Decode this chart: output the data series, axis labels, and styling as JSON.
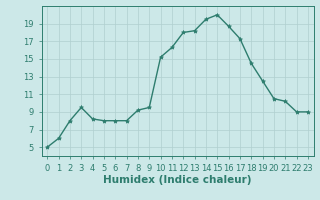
{
  "x": [
    0,
    1,
    2,
    3,
    4,
    5,
    6,
    7,
    8,
    9,
    10,
    11,
    12,
    13,
    14,
    15,
    16,
    17,
    18,
    19,
    20,
    21,
    22,
    23
  ],
  "y": [
    5,
    6,
    8,
    9.5,
    8.2,
    8,
    8,
    8,
    9.2,
    9.5,
    15.2,
    16.3,
    18,
    18.2,
    19.5,
    20,
    18.7,
    17.3,
    14.5,
    12.5,
    10.5,
    10.2,
    9,
    9
  ],
  "line_color": "#2e7d6e",
  "marker": "*",
  "marker_size": 3,
  "bg_color": "#cce8e8",
  "grid_color": "#b0cfcf",
  "xlabel": "Humidex (Indice chaleur)",
  "xlabel_fontsize": 7.5,
  "yticks": [
    5,
    7,
    9,
    11,
    13,
    15,
    17,
    19
  ],
  "ylim": [
    4,
    21
  ],
  "xlim": [
    -0.5,
    23.5
  ],
  "xtick_labels": [
    "0",
    "1",
    "2",
    "3",
    "4",
    "5",
    "6",
    "7",
    "8",
    "9",
    "10",
    "11",
    "12",
    "13",
    "14",
    "15",
    "16",
    "17",
    "18",
    "19",
    "20",
    "21",
    "22",
    "23"
  ],
  "tick_fontsize": 6,
  "linewidth": 1.0
}
